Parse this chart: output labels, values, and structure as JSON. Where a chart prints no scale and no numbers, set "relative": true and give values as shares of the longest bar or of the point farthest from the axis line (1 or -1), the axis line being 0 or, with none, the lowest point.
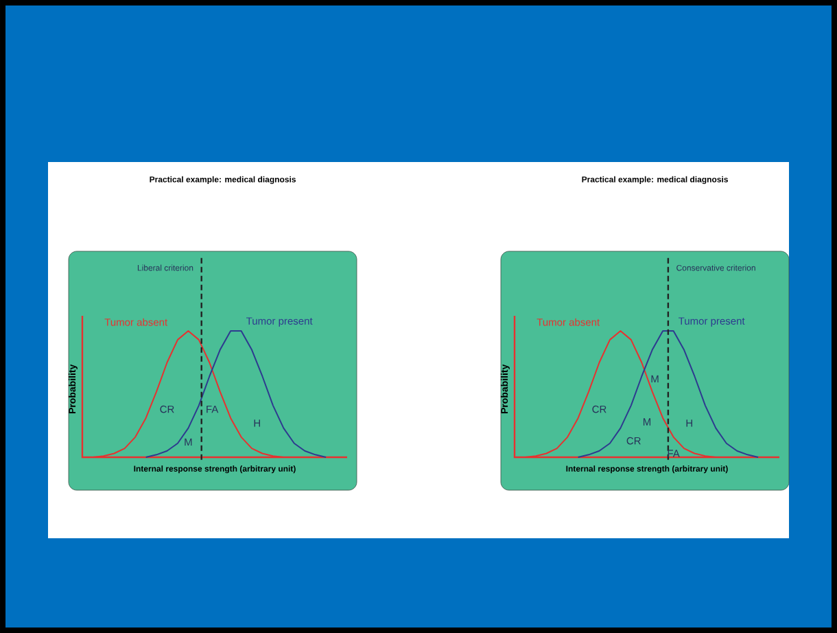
{
  "chart_data": [
    {
      "type": "line",
      "relative": true,
      "title": "Practical example: medical diagnosis",
      "xlabel": "Internal response strength (arbitrary unit)",
      "ylabel": "Probability",
      "marker": "none",
      "categories": [
        null,
        null,
        null,
        null,
        null,
        null,
        null,
        null,
        null,
        null,
        null,
        null,
        null,
        null,
        null,
        null,
        null,
        null,
        null,
        null,
        null,
        null,
        null
      ],
      "series": [
        {
          "name": "Tumor absent",
          "color": "#e8312f",
          "values": [
            0,
            0.01,
            0.03,
            0.07,
            0.16,
            0.31,
            0.52,
            0.75,
            0.93,
            1,
            0.93,
            0.75,
            0.52,
            0.31,
            0.16,
            0.07,
            0.03,
            0.01,
            0,
            null,
            null,
            null,
            null
          ]
        },
        {
          "name": "Tumor present",
          "color": "#2e3a8f",
          "values": [
            null,
            null,
            null,
            null,
            null,
            0,
            0.02,
            0.05,
            0.11,
            0.23,
            0.41,
            0.64,
            0.85,
            1,
            1,
            0.85,
            0.64,
            0.41,
            0.23,
            0.11,
            0.05,
            0.02,
            0
          ]
        }
      ],
      "annotations": [
        "Liberal criterion",
        "CR",
        "FA",
        "M",
        "H"
      ]
    },
    {
      "type": "line",
      "relative": true,
      "title": "Practical example: medical diagnosis",
      "xlabel": "Internal response strength (arbitrary unit)",
      "ylabel": "Probability",
      "marker": "none",
      "categories": [
        null,
        null,
        null,
        null,
        null,
        null,
        null,
        null,
        null,
        null,
        null,
        null,
        null,
        null,
        null,
        null,
        null,
        null,
        null,
        null,
        null,
        null,
        null
      ],
      "series": [
        {
          "name": "Tumor absent",
          "color": "#e8312f",
          "values": [
            0,
            0.01,
            0.03,
            0.07,
            0.16,
            0.31,
            0.52,
            0.75,
            0.93,
            1,
            0.93,
            0.75,
            0.52,
            0.31,
            0.16,
            0.07,
            0.03,
            0.01,
            0,
            null,
            null,
            null,
            null
          ]
        },
        {
          "name": "Tumor present",
          "color": "#2e3a8f",
          "values": [
            null,
            null,
            null,
            null,
            null,
            0,
            0.02,
            0.05,
            0.11,
            0.23,
            0.41,
            0.64,
            0.85,
            1,
            1,
            0.85,
            0.64,
            0.41,
            0.23,
            0.11,
            0.05,
            0.02,
            0
          ]
        }
      ],
      "annotations": [
        "Conservative criterion",
        "CR",
        "M",
        "M",
        "CR",
        "H",
        "FA"
      ]
    }
  ]
}
